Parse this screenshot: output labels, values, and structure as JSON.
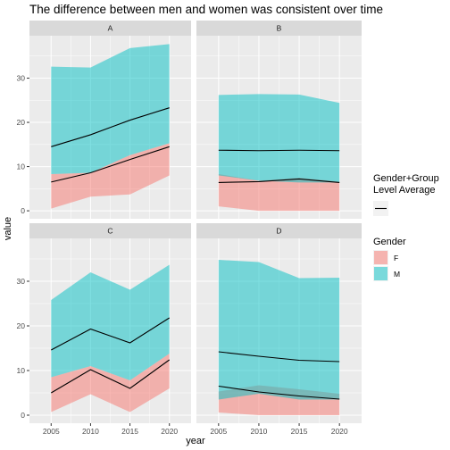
{
  "chart_data": {
    "type": "area",
    "title": "The difference between men and women was consistent over time",
    "xlabel": "year",
    "ylabel": "value",
    "x": [
      2005,
      2010,
      2015,
      2020
    ],
    "xlim": [
      2002.25,
      2022.75
    ],
    "ylim": [
      -1.8,
      39.6
    ],
    "x_ticks": [
      "2005",
      "2010",
      "2015",
      "2020"
    ],
    "y_ticks": [
      "0",
      "10",
      "20",
      "30"
    ],
    "grid": true,
    "legend_position": "right",
    "legend": {
      "line_title": "Gender+Group\nLevel Average",
      "fill_title": "Gender",
      "entries": [
        {
          "key": "F",
          "label": "F",
          "color": "#f8766d"
        },
        {
          "key": "M",
          "label": "M",
          "color": "#00bfc4"
        }
      ]
    },
    "panels": [
      {
        "label": "A",
        "series": [
          {
            "name": "F",
            "ymin": [
              0.5,
              3.2,
              3.7,
              8.0
            ],
            "ymax": [
              8.3,
              8.6,
              12.6,
              15.3
            ],
            "average": [
              6.5,
              8.6,
              11.6,
              14.5
            ]
          },
          {
            "name": "M",
            "ymin": [
              8.3,
              8.6,
              12.6,
              15.3
            ],
            "ymax": [
              32.6,
              32.4,
              36.8,
              37.7
            ],
            "average": [
              14.5,
              17.2,
              20.5,
              23.3
            ]
          }
        ]
      },
      {
        "label": "B",
        "series": [
          {
            "name": "F",
            "ymin": [
              1.0,
              0.0,
              0.0,
              0.0
            ],
            "ymax": [
              8.3,
              6.8,
              7.5,
              6.6
            ],
            "average": [
              6.4,
              6.6,
              7.2,
              6.4
            ]
          },
          {
            "name": "M",
            "ymin": [
              8.0,
              6.8,
              6.4,
              6.4
            ],
            "ymax": [
              26.2,
              26.4,
              26.3,
              24.4
            ],
            "average": [
              13.7,
              13.6,
              13.7,
              13.6
            ]
          }
        ]
      },
      {
        "label": "C",
        "series": [
          {
            "name": "F",
            "ymin": [
              0.7,
              4.7,
              0.7,
              6.0
            ],
            "ymax": [
              8.5,
              11.0,
              7.8,
              13.8
            ],
            "average": [
              5.0,
              10.2,
              6.0,
              12.4
            ]
          },
          {
            "name": "M",
            "ymin": [
              8.5,
              11.0,
              7.8,
              13.8
            ],
            "ymax": [
              25.8,
              32.0,
              28.1,
              33.7
            ],
            "average": [
              14.6,
              19.3,
              16.2,
              21.8
            ]
          }
        ]
      },
      {
        "label": "D",
        "series": [
          {
            "name": "F",
            "ymin": [
              0.6,
              0.0,
              0.0,
              0.0
            ],
            "ymax": [
              5.3,
              6.7,
              5.8,
              4.8
            ],
            "average": [
              6.5,
              5.2,
              4.3,
              3.6
            ]
          },
          {
            "name": "M",
            "ymin": [
              3.5,
              4.8,
              3.5,
              3.5
            ],
            "ymax": [
              34.8,
              34.3,
              30.7,
              30.8
            ],
            "average": [
              14.2,
              13.2,
              12.3,
              12.0
            ]
          }
        ]
      }
    ]
  }
}
